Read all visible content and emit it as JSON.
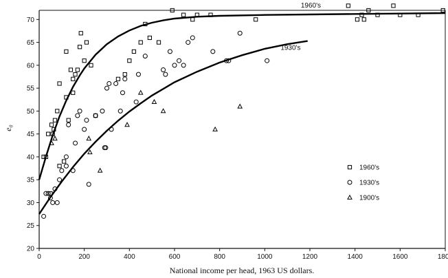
{
  "chart_data": {
    "type": "scatter",
    "xlabel": "National income per head, 1963 US dollars.",
    "ylabel": "e₀",
    "xlim": [
      0,
      1800
    ],
    "ylim": [
      20,
      72
    ],
    "xticks": [
      "0",
      "200",
      "400",
      "600",
      "800",
      "1000",
      "1200",
      "1400",
      "1600",
      "1800"
    ],
    "yticks": [
      "20",
      "25",
      "30",
      "35",
      "40",
      "45",
      "50",
      "55",
      "60",
      "65",
      "70"
    ],
    "grid": false,
    "legend_position": "right",
    "series": [
      {
        "name": "1960's",
        "marker": "square",
        "points": [
          [
            20,
            40
          ],
          [
            30,
            40
          ],
          [
            40,
            45
          ],
          [
            50,
            32
          ],
          [
            55,
            47
          ],
          [
            60,
            45
          ],
          [
            65,
            46
          ],
          [
            70,
            48
          ],
          [
            80,
            50
          ],
          [
            90,
            38
          ],
          [
            90,
            56
          ],
          [
            110,
            39
          ],
          [
            120,
            53
          ],
          [
            120,
            63
          ],
          [
            130,
            48
          ],
          [
            140,
            59
          ],
          [
            150,
            54
          ],
          [
            150,
            57
          ],
          [
            160,
            58
          ],
          [
            170,
            59
          ],
          [
            180,
            64
          ],
          [
            185,
            67
          ],
          [
            200,
            61
          ],
          [
            210,
            65
          ],
          [
            230,
            60
          ],
          [
            250,
            49
          ],
          [
            350,
            57
          ],
          [
            380,
            58
          ],
          [
            400,
            61
          ],
          [
            420,
            63
          ],
          [
            450,
            65
          ],
          [
            470,
            69
          ],
          [
            490,
            66
          ],
          [
            530,
            65
          ],
          [
            590,
            72
          ],
          [
            640,
            71
          ],
          [
            680,
            70
          ],
          [
            700,
            71
          ],
          [
            760,
            71
          ],
          [
            960,
            70
          ],
          [
            1370,
            73
          ],
          [
            1410,
            70
          ],
          [
            1430,
            71
          ],
          [
            1440,
            70
          ],
          [
            1460,
            72
          ],
          [
            1500,
            71
          ],
          [
            1570,
            73
          ],
          [
            1600,
            71
          ],
          [
            1680,
            71
          ],
          [
            1790,
            72
          ]
        ]
      },
      {
        "name": "1930's",
        "marker": "circle",
        "points": [
          [
            20,
            27
          ],
          [
            30,
            32
          ],
          [
            40,
            32
          ],
          [
            50,
            31
          ],
          [
            60,
            30
          ],
          [
            70,
            33
          ],
          [
            80,
            30
          ],
          [
            90,
            35
          ],
          [
            100,
            37
          ],
          [
            120,
            38
          ],
          [
            120,
            40
          ],
          [
            130,
            47
          ],
          [
            150,
            37
          ],
          [
            160,
            43
          ],
          [
            170,
            49
          ],
          [
            180,
            50
          ],
          [
            200,
            46
          ],
          [
            210,
            48
          ],
          [
            220,
            34
          ],
          [
            250,
            49
          ],
          [
            280,
            50
          ],
          [
            290,
            42
          ],
          [
            295,
            42
          ],
          [
            300,
            55
          ],
          [
            310,
            56
          ],
          [
            320,
            46
          ],
          [
            340,
            56
          ],
          [
            360,
            50
          ],
          [
            370,
            54
          ],
          [
            380,
            57
          ],
          [
            430,
            52
          ],
          [
            440,
            58
          ],
          [
            470,
            62
          ],
          [
            550,
            59
          ],
          [
            560,
            58
          ],
          [
            580,
            63
          ],
          [
            600,
            60
          ],
          [
            620,
            61
          ],
          [
            640,
            60
          ],
          [
            660,
            65
          ],
          [
            680,
            66
          ],
          [
            770,
            63
          ],
          [
            830,
            61
          ],
          [
            840,
            61
          ],
          [
            890,
            67
          ],
          [
            1010,
            61
          ]
        ]
      },
      {
        "name": "1900's",
        "marker": "triangle",
        "points": [
          [
            55,
            43
          ],
          [
            70,
            44
          ],
          [
            220,
            44
          ],
          [
            225,
            41
          ],
          [
            270,
            37
          ],
          [
            390,
            47
          ],
          [
            450,
            54
          ],
          [
            510,
            52
          ],
          [
            550,
            50
          ],
          [
            780,
            46
          ],
          [
            890,
            51
          ]
        ]
      }
    ],
    "fitted_curves": [
      {
        "label": "1960's",
        "points": [
          [
            0,
            35
          ],
          [
            30,
            40
          ],
          [
            60,
            44.7
          ],
          [
            90,
            48.8
          ],
          [
            120,
            52.3
          ],
          [
            150,
            55.3
          ],
          [
            180,
            57.8
          ],
          [
            200,
            59.3
          ],
          [
            250,
            62.3
          ],
          [
            300,
            64.6
          ],
          [
            350,
            66.3
          ],
          [
            400,
            67.6
          ],
          [
            450,
            68.6
          ],
          [
            500,
            69.3
          ],
          [
            550,
            69.8
          ],
          [
            600,
            70.2
          ],
          [
            700,
            70.6
          ],
          [
            800,
            70.8
          ],
          [
            1000,
            71
          ],
          [
            1200,
            71.1
          ],
          [
            1400,
            71.2
          ],
          [
            1600,
            71.3
          ],
          [
            1800,
            71.4
          ]
        ]
      },
      {
        "label": "1930's",
        "points": [
          [
            0,
            27.5
          ],
          [
            50,
            31.2
          ],
          [
            100,
            34.6
          ],
          [
            150,
            37.8
          ],
          [
            200,
            40.7
          ],
          [
            250,
            43.3
          ],
          [
            300,
            45.7
          ],
          [
            350,
            47.9
          ],
          [
            400,
            49.9
          ],
          [
            450,
            51.7
          ],
          [
            500,
            53.4
          ],
          [
            600,
            56.3
          ],
          [
            700,
            58.6
          ],
          [
            800,
            60.6
          ],
          [
            900,
            62.2
          ],
          [
            1000,
            63.6
          ],
          [
            1100,
            64.6
          ],
          [
            1190,
            65.3
          ]
        ]
      }
    ]
  }
}
